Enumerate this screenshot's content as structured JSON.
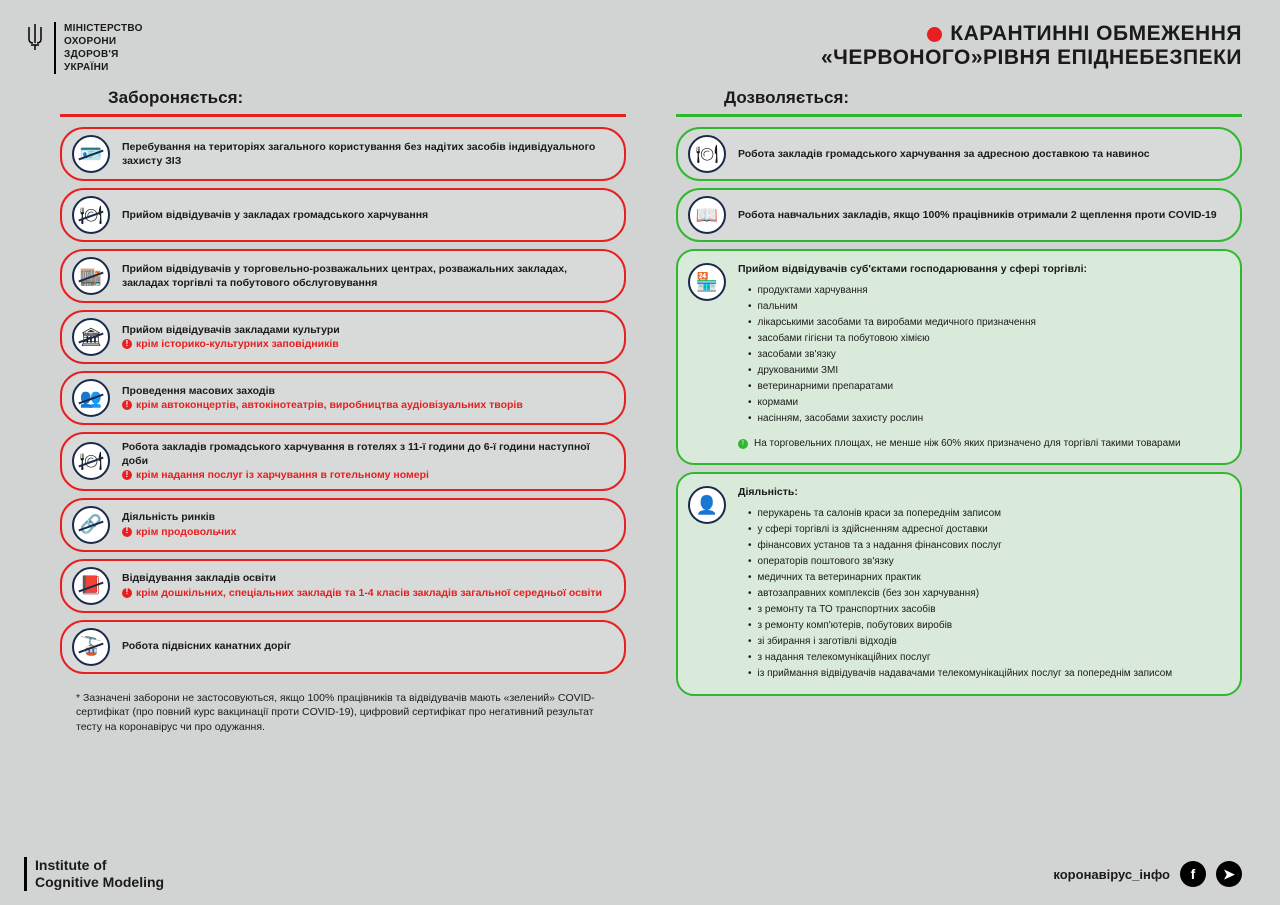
{
  "colors": {
    "background": "#d2d4d3",
    "red": "#e62020",
    "green": "#2fb82f",
    "text": "#1a1a1a",
    "iconBorder": "#1a2b4a"
  },
  "ministry": {
    "line1": "МІНІСТЕРСТВО",
    "line2": "ОХОРОНИ",
    "line3": "ЗДОРОВ'Я",
    "line4": "УКРАЇНИ"
  },
  "title": {
    "line1": "КАРАНТИННІ ОБМЕЖЕННЯ",
    "line2": "«ЧЕРВОНОГО»РІВНЯ ЕПІДНЕБЕЗПЕКИ"
  },
  "prohibited": {
    "header": "Забороняється:",
    "items": [
      {
        "icon": "🪪",
        "text": "Перебування на територіях загального користування без надітих засобів індивідуального захисту  ЗІЗ"
      },
      {
        "icon": "🍽",
        "text": "Прийом відвідувачів у закладах громадського харчування"
      },
      {
        "icon": "🏬",
        "text": "Прийом відвідувачів у торговельно-розважальних центрах, розважальних закладах, закладах торгівлі та побутового обслуговування"
      },
      {
        "icon": "🏛",
        "text": "Прийом відвідувачів закладами культури",
        "exception": "крім історико-культурних заповідників"
      },
      {
        "icon": "👥",
        "text": "Проведення масових заходів",
        "exception": "крім автоконцертів, автокінотеатрів, виробництва аудіовізуальних творів"
      },
      {
        "icon": "🍽",
        "text": "Робота закладів громадського харчування в готелях з 11-ї години до 6-ї години наступної доби",
        "exception": "крім надання послуг із харчування в готельному номері"
      },
      {
        "icon": "🔗",
        "text": "Діяльність ринків",
        "exception": "крім продовольчих"
      },
      {
        "icon": "📕",
        "text": "Відвідування закладів освіти",
        "exception": "крім дошкільних, спеціальних закладів та 1-4 класів закладів загальної середньої освіти"
      },
      {
        "icon": "🚡",
        "text": "Робота підвісних канатних доріг"
      }
    ],
    "footnote": "* Зазначені заборони не застосовуються, якщо 100% працівників та відвідувачів мають «зелений» COVID-сертифікат (про повний курс вакцинації проти COVID-19), цифровий сертифікат про негативний результат тесту на коронавірус чи про одужання."
  },
  "allowed": {
    "header": "Дозволяється:",
    "simple": [
      {
        "icon": "🍽",
        "text": "Робота закладів громадського харчування за адресною доставкою та навинос"
      },
      {
        "icon": "📖",
        "text": "Робота навчальних закладів, якщо 100% працівників отримали 2 щеплення проти COVID-19"
      }
    ],
    "block1": {
      "icon": "🏪",
      "title": "Прийом відвідувачів суб'єктами господарювання у сфері торгівлі:",
      "list": [
        "продуктами харчування",
        "пальним",
        "лікарськими засобами та виробами медичного призначення",
        "засобами гігієни та побутовою хімією",
        "засобами зв'язку",
        "друкованими ЗМІ",
        "ветеринарними препаратами",
        "кормами",
        "насінням, засобами захисту рослин"
      ],
      "note": "На торговельних площах, не менше ніж 60% яких призначено для торгівлі такими товарами"
    },
    "block2": {
      "icon": "👤",
      "title": "Діяльність:",
      "list": [
        "перукарень та салонів краси за попереднім записом",
        "у сфері торгівлі із здійсненням адресної доставки",
        "фінансових установ та з надання фінансових послуг",
        "операторів поштового зв'язку",
        "медичних та ветеринарних практик",
        "автозаправних комплексів (без зон харчування)",
        "з ремонту та ТО транспортних засобів",
        "з ремонту комп'ютерів, побутових виробів",
        "зі збирання і заготівлі відходів",
        "з надання телекомунікаційних послуг",
        "із приймання відвідувачів надавачами телекомунікаційних послуг за попереднім записом"
      ]
    }
  },
  "footer": {
    "institute1": "Institute of",
    "institute2": "Cognitive Modeling",
    "tag": "коронавірус_інфо"
  }
}
